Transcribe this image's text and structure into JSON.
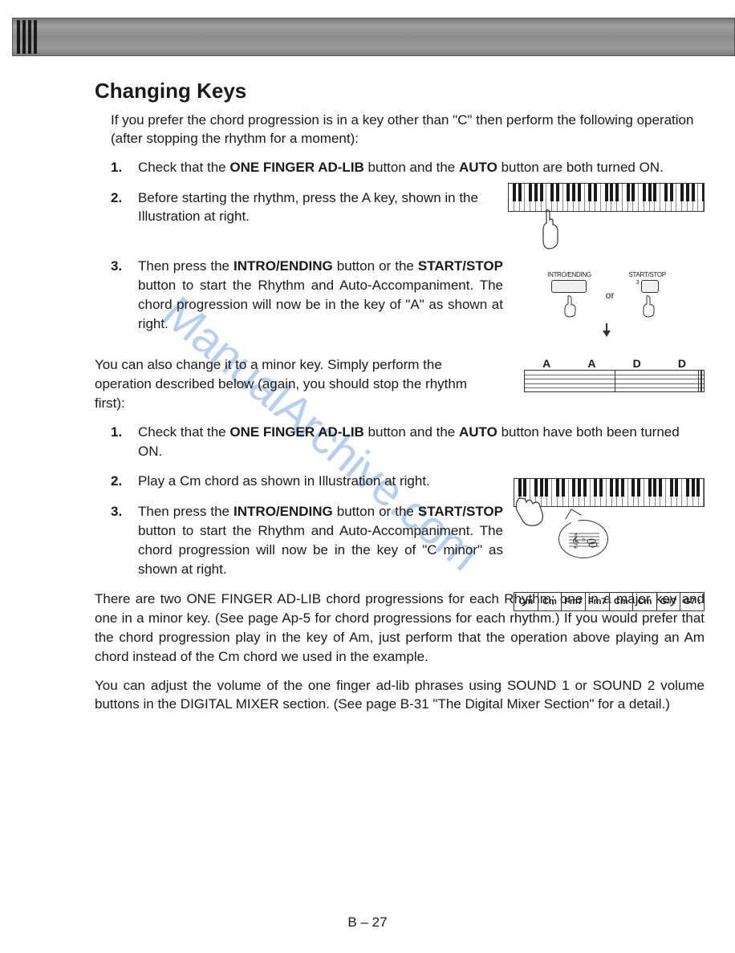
{
  "title": "Changing Keys",
  "intro": "If you prefer the chord progression is in a key other than \"C\" then perform the following operation (after stopping the rhythm for a moment):",
  "list1": {
    "item1": {
      "num": "1.",
      "pre": "Check that the ",
      "b1": "ONE FINGER AD-LIB",
      "mid": " button and the ",
      "b2": "AUTO",
      "post": " button are both turned ON."
    },
    "item2": {
      "num": "2.",
      "text": "Before starting the rhythm, press the A key, shown in the Illustration at right."
    },
    "item3": {
      "num": "3.",
      "pre": "Then press the ",
      "b1": "INTRO/ENDING",
      "mid": " button or the ",
      "b2": "START/STOP",
      "post": " button to start the Rhythm and Auto-Accompaniment. The chord progression will now be in the key of \"A\" as shown at right."
    }
  },
  "para2": "You can also change it to a minor key. Simply perform the operation described below (again, you should stop the rhythm first):",
  "list2": {
    "item1": {
      "num": "1.",
      "pre": "Check that the ",
      "b1": "ONE FINGER AD-LIB",
      "mid": " button and the ",
      "b2": "AUTO",
      "post": " button have both been turned ON."
    },
    "item2": {
      "num": "2.",
      "text": "Play a Cm chord as shown in Illustration at right."
    },
    "item3": {
      "num": "3.",
      "pre": "Then press the ",
      "b1": "INTRO/ENDING",
      "mid": " button or the ",
      "b2": "START/STOP",
      "post": " button to start the Rhythm and Auto-Accompaniment. The chord progression will now be in the key of \"C minor\" as shown at right."
    }
  },
  "para3": "There are two ONE FINGER AD-LIB chord progressions for each Rhythm; one in a major key and one in a minor key. (See page Ap-5 for chord progressions for each rhythm.) If you would prefer that the chord progression play in the key of Am, just perform that the operation above playing an Am chord instead of the Cm chord we used in the example.",
  "para4": "You can adjust the volume of the one finger ad-lib phrases using SOUND 1 or SOUND 2 volume buttons in the DIGITAL MIXER section. (See page B-31 \"The Digital Mixer Section\" for a detail.)",
  "buttons": {
    "label1": "INTRO/ENDING",
    "label2": "START/STOP",
    "or": "or"
  },
  "staff": {
    "labels": [
      "A",
      "A",
      "D",
      "D"
    ]
  },
  "chords": [
    "Cm",
    "Cm",
    "Fm7",
    "Fm7",
    "Cm",
    "Cm",
    "G#7",
    "G7 :"
  ],
  "watermark": "ManualArchive.com",
  "page": "B – 27"
}
